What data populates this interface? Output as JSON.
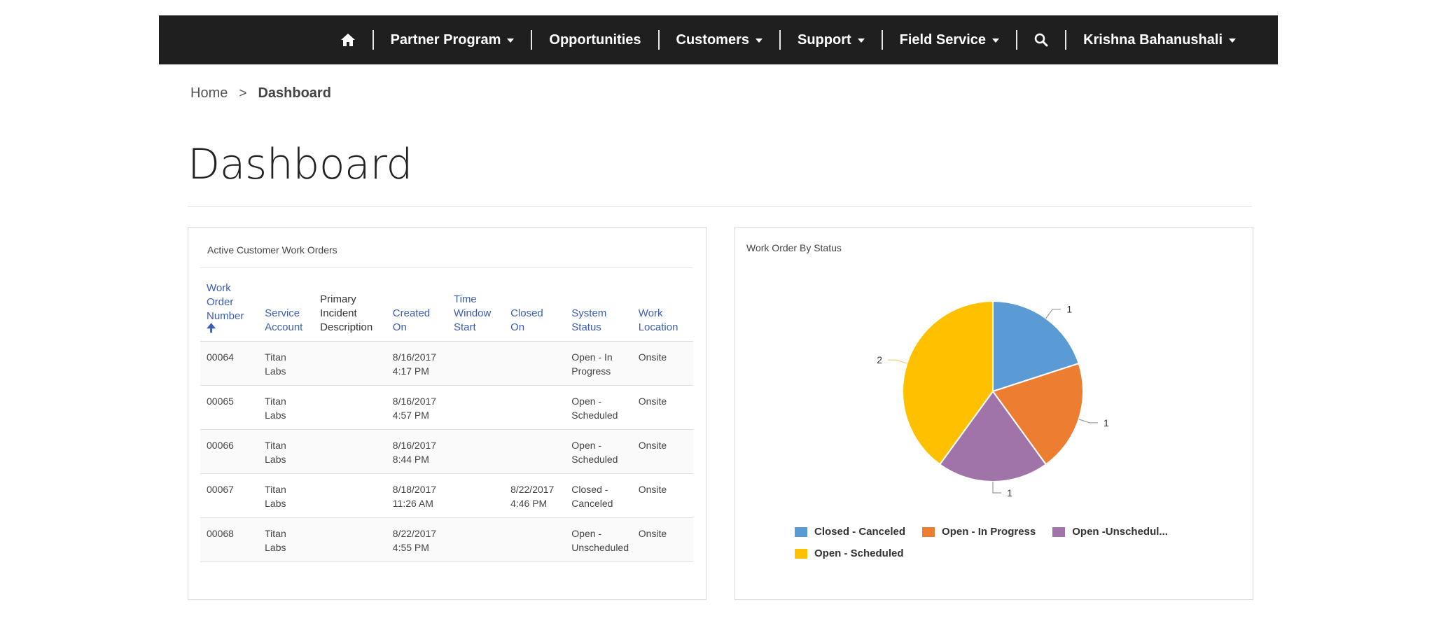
{
  "nav": {
    "home_icon": "home-icon",
    "items": [
      {
        "label": "Partner Program",
        "dropdown": true
      },
      {
        "label": "Opportunities",
        "dropdown": false
      },
      {
        "label": "Customers",
        "dropdown": true
      },
      {
        "label": "Support",
        "dropdown": true
      },
      {
        "label": "Field Service",
        "dropdown": true
      }
    ],
    "search_icon": "search-icon",
    "user": {
      "label": "Krishna Bahanushali",
      "dropdown": true
    }
  },
  "breadcrumb": {
    "home": "Home",
    "separator": ">",
    "current": "Dashboard"
  },
  "page": {
    "title": "Dashboard"
  },
  "work_orders": {
    "title": "Active Customer Work Orders",
    "columns": [
      {
        "label": "Work Order Number",
        "sortable": true,
        "sorted": "ascending"
      },
      {
        "label": "Service Account",
        "sortable": true
      },
      {
        "label": "Primary Incident Description",
        "sortable": false
      },
      {
        "label": "Created On",
        "sortable": true
      },
      {
        "label": "Time Window Start",
        "sortable": true
      },
      {
        "label": "Closed On",
        "sortable": true
      },
      {
        "label": "System Status",
        "sortable": true
      },
      {
        "label": "Work Location",
        "sortable": true
      }
    ],
    "rows": [
      {
        "number": "00064",
        "account": "Titan Labs",
        "incident": "",
        "created": "8/16/2017 4:17 PM",
        "window_start": "",
        "closed": "",
        "status": "Open - In Progress",
        "location": "Onsite"
      },
      {
        "number": "00065",
        "account": "Titan Labs",
        "incident": "",
        "created": "8/16/2017 4:57 PM",
        "window_start": "",
        "closed": "",
        "status": "Open - Scheduled",
        "location": "Onsite"
      },
      {
        "number": "00066",
        "account": "Titan Labs",
        "incident": "",
        "created": "8/16/2017 8:44 PM",
        "window_start": "",
        "closed": "",
        "status": "Open - Scheduled",
        "location": "Onsite"
      },
      {
        "number": "00067",
        "account": "Titan Labs",
        "incident": "",
        "created": "8/18/2017 11:26 AM",
        "window_start": "",
        "closed": "8/22/2017 4:46 PM",
        "status": "Closed - Canceled",
        "location": "Onsite"
      },
      {
        "number": "00068",
        "account": "Titan Labs",
        "incident": "",
        "created": "8/22/2017 4:55 PM",
        "window_start": "",
        "closed": "",
        "status": "Open - Unscheduled",
        "location": "Onsite"
      }
    ]
  },
  "chart_data": {
    "type": "pie",
    "title": "Work Order By Status",
    "slices": [
      {
        "label": "Closed - Canceled",
        "value": 1,
        "color": "#5b9bd5"
      },
      {
        "label": "Open - In Progress",
        "value": 1,
        "color": "#ed7d31"
      },
      {
        "label": "Open -Unschedul...",
        "value": 1,
        "color": "#a074a8"
      },
      {
        "label": "Open - Scheduled",
        "value": 2,
        "color": "#ffc000"
      }
    ],
    "legend_position": "bottom"
  },
  "colors": {
    "nav_bg": "#1f1f1f",
    "link": "#3b5db3"
  }
}
